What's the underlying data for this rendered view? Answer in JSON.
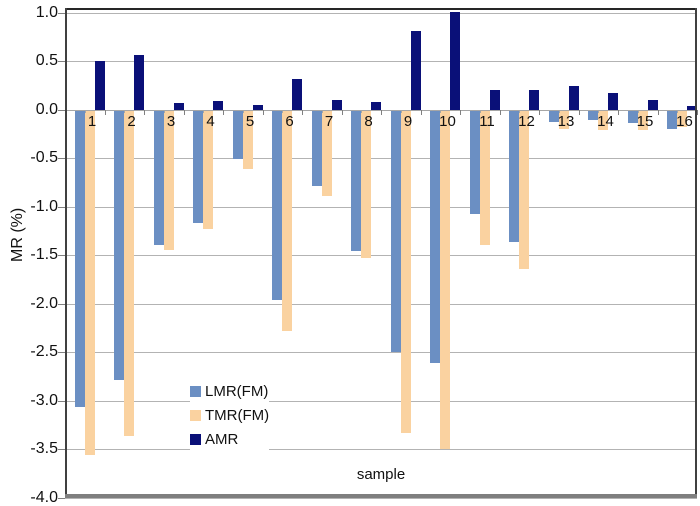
{
  "chart_data": {
    "type": "bar",
    "title": "",
    "xlabel": "sample",
    "ylabel": "MR (%)",
    "categories": [
      "1",
      "2",
      "3",
      "4",
      "5",
      "6",
      "7",
      "8",
      "9",
      "10",
      "11",
      "12",
      "13",
      "14",
      "15",
      "16"
    ],
    "series": [
      {
        "name": "LMR(FM)",
        "color": "#6b8fc3",
        "values": [
          -3.05,
          -2.77,
          -1.38,
          -1.16,
          -0.5,
          -1.95,
          -0.77,
          -1.44,
          -2.48,
          -2.6,
          -1.06,
          -1.35,
          -0.11,
          -0.09,
          -0.13,
          -0.19
        ]
      },
      {
        "name": "TMR(FM)",
        "color": "#fad2a0",
        "values": [
          -3.55,
          -3.35,
          -1.43,
          -1.22,
          -0.6,
          -2.27,
          -0.88,
          -1.52,
          -3.32,
          -3.48,
          -1.38,
          -1.63,
          -0.19,
          -0.2,
          -0.2,
          -0.17
        ]
      },
      {
        "name": "AMR",
        "color": "#0a1078",
        "values": [
          0.5,
          0.57,
          0.07,
          0.09,
          0.05,
          0.32,
          0.1,
          0.08,
          0.81,
          1.01,
          0.2,
          0.21,
          0.25,
          0.17,
          0.1,
          0.04
        ]
      }
    ],
    "yticks": [
      "1.0",
      "0.5",
      "0.0",
      "-0.5",
      "-1.0",
      "-1.5",
      "-2.0",
      "-2.5",
      "-3.0",
      "-3.5",
      "-4.0"
    ],
    "ylim": [
      -4.0,
      1.05
    ],
    "grid": true,
    "legend_position": "inside-bottom-left"
  },
  "colors": {
    "gridline": "#b3b3b3",
    "zero_axis": "#a6a6a6",
    "tick": "#808080",
    "frame_top": "#262626",
    "frame_side": "#404040",
    "frame_bottom": "#7f7f7f",
    "text": "#111111"
  }
}
